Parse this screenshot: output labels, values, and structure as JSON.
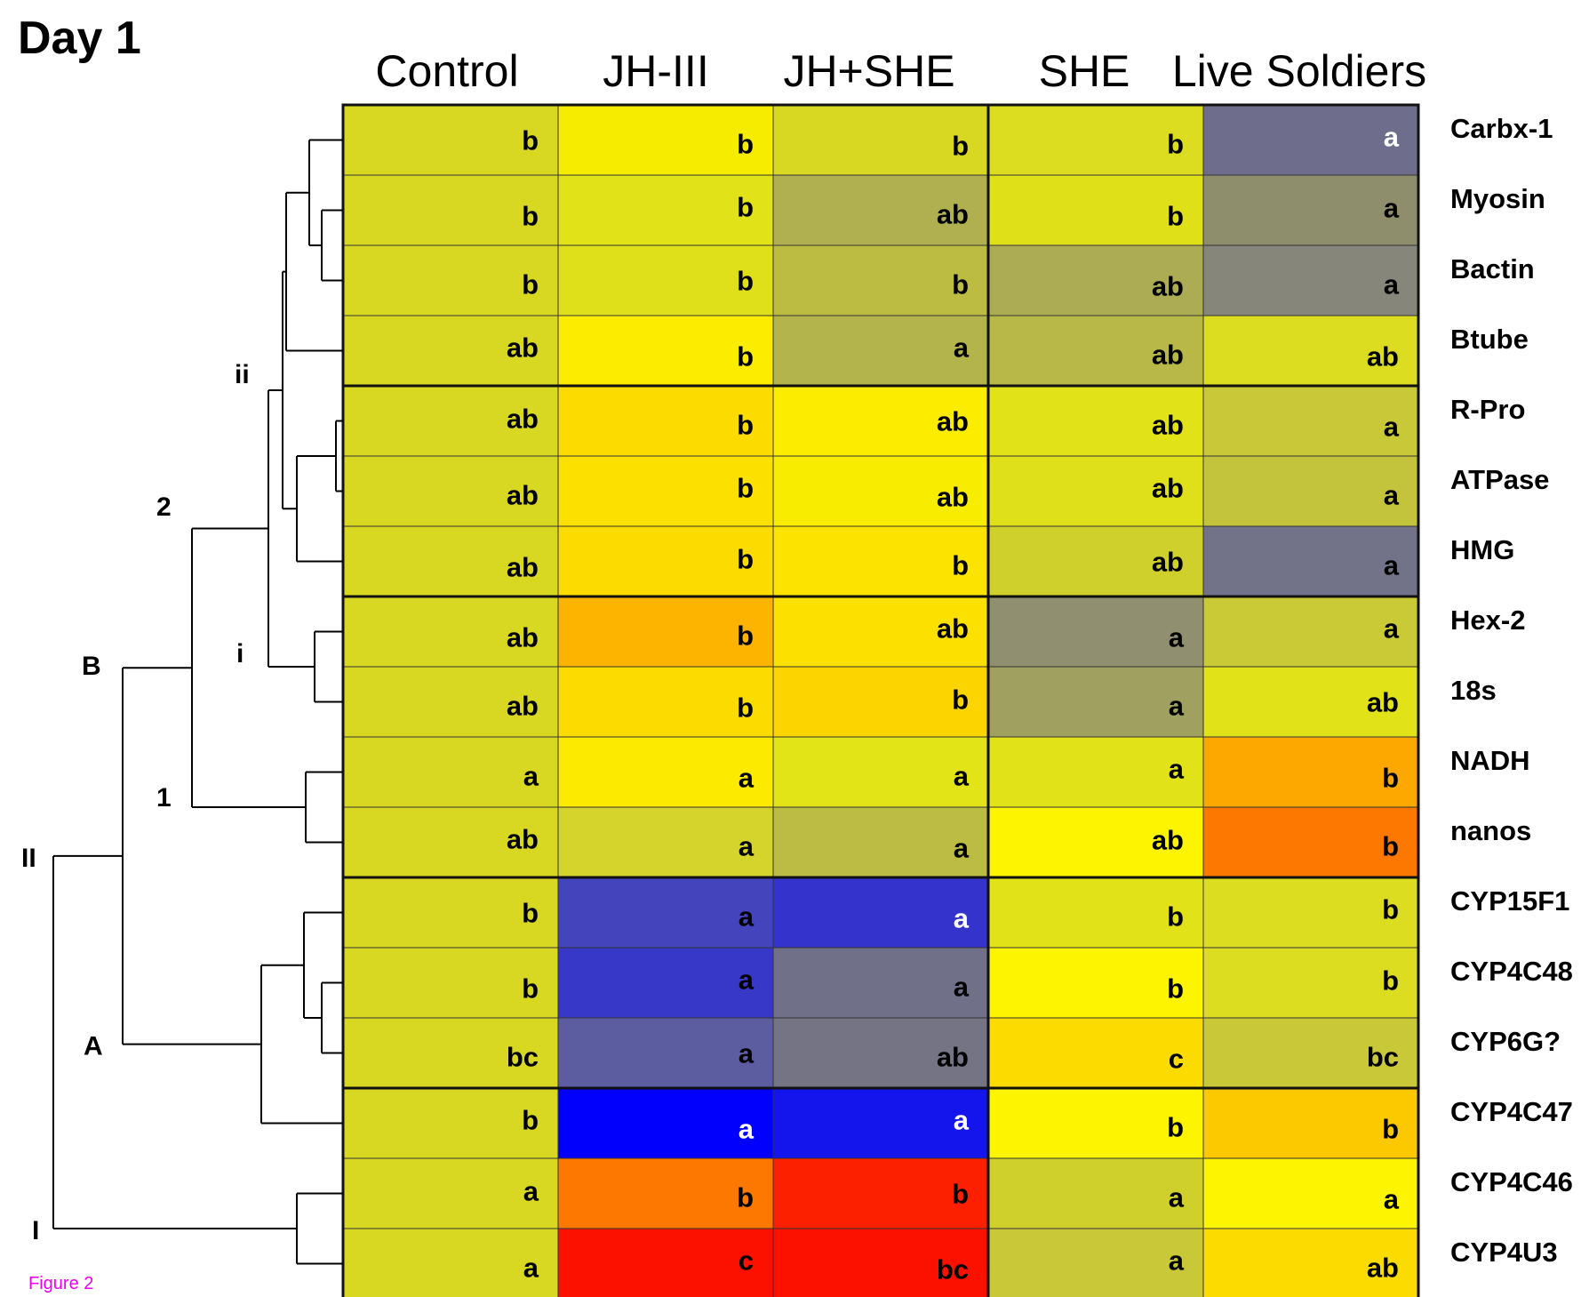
{
  "figure": {
    "title": "Day 1",
    "caption": "Figure 2"
  },
  "chart_data": {
    "type": "heatmap",
    "columns": [
      "Control",
      "JH-III",
      "JH+SHE",
      "SHE",
      "Live Soldiers"
    ],
    "rows": [
      "Carbx-1",
      "Myosin",
      "Bactin",
      "Btube",
      "R-Pro",
      "ATPase",
      "HMG",
      "Hex-2",
      "18s",
      "NADH",
      "nanos",
      "CYP15F1",
      "CYP4C48",
      "CYP6G?",
      "CYP4C47",
      "CYP4C46",
      "CYP4U3"
    ],
    "cells": [
      [
        {
          "letter": "b",
          "color": "#d8d823"
        },
        {
          "letter": "b",
          "color": "#f6ec00"
        },
        {
          "letter": "b",
          "color": "#d8d823"
        },
        {
          "letter": "b",
          "color": "#dcdc20"
        },
        {
          "letter": "a",
          "color": "#6e6e8c",
          "text_color": "#ffffff"
        }
      ],
      [
        {
          "letter": "b",
          "color": "#d8d823"
        },
        {
          "letter": "b",
          "color": "#e2e218"
        },
        {
          "letter": "ab",
          "color": "#b0b050"
        },
        {
          "letter": "b",
          "color": "#e0e019"
        },
        {
          "letter": "a",
          "color": "#8e8e6c"
        }
      ],
      [
        {
          "letter": "b",
          "color": "#d8d823"
        },
        {
          "letter": "b",
          "color": "#e0e01a"
        },
        {
          "letter": "b",
          "color": "#bcbc42"
        },
        {
          "letter": "ab",
          "color": "#acac55"
        },
        {
          "letter": "a",
          "color": "#86867a"
        }
      ],
      [
        {
          "letter": "ab",
          "color": "#d8d823"
        },
        {
          "letter": "b",
          "color": "#fcec00"
        },
        {
          "letter": "a",
          "color": "#b4b44c"
        },
        {
          "letter": "ab",
          "color": "#b8b848"
        },
        {
          "letter": "ab",
          "color": "#dcdc20"
        }
      ],
      [
        {
          "letter": "ab",
          "color": "#d8d823"
        },
        {
          "letter": "b",
          "color": "#fcdc00"
        },
        {
          "letter": "ab",
          "color": "#fcec00"
        },
        {
          "letter": "ab",
          "color": "#e2e218"
        },
        {
          "letter": "a",
          "color": "#c8c838"
        }
      ],
      [
        {
          "letter": "ab",
          "color": "#d8d823"
        },
        {
          "letter": "b",
          "color": "#fce000"
        },
        {
          "letter": "ab",
          "color": "#f8ec00"
        },
        {
          "letter": "ab",
          "color": "#e0e01a"
        },
        {
          "letter": "a",
          "color": "#c4c43c"
        }
      ],
      [
        {
          "letter": "ab",
          "color": "#d8d823"
        },
        {
          "letter": "b",
          "color": "#fcdc00"
        },
        {
          "letter": "b",
          "color": "#fce400"
        },
        {
          "letter": "ab",
          "color": "#d0d02c"
        },
        {
          "letter": "a",
          "color": "#727288"
        }
      ],
      [
        {
          "letter": "ab",
          "color": "#d8d823"
        },
        {
          "letter": "b",
          "color": "#fcb400"
        },
        {
          "letter": "ab",
          "color": "#fce000"
        },
        {
          "letter": "a",
          "color": "#909070"
        },
        {
          "letter": "a",
          "color": "#caca36"
        }
      ],
      [
        {
          "letter": "ab",
          "color": "#d8d823"
        },
        {
          "letter": "b",
          "color": "#fcdc00"
        },
        {
          "letter": "b",
          "color": "#fcd400"
        },
        {
          "letter": "a",
          "color": "#a0a060"
        },
        {
          "letter": "ab",
          "color": "#e2e218"
        }
      ],
      [
        {
          "letter": "a",
          "color": "#d8d823"
        },
        {
          "letter": "a",
          "color": "#fcea00"
        },
        {
          "letter": "a",
          "color": "#e2e418"
        },
        {
          "letter": "a",
          "color": "#e2e218"
        },
        {
          "letter": "b",
          "color": "#fca800"
        }
      ],
      [
        {
          "letter": "ab",
          "color": "#d8d823"
        },
        {
          "letter": "a",
          "color": "#d4d42c"
        },
        {
          "letter": "a",
          "color": "#bcbc44"
        },
        {
          "letter": "ab",
          "color": "#fcf400"
        },
        {
          "letter": "b",
          "color": "#fc7800"
        }
      ],
      [
        {
          "letter": "b",
          "color": "#d8d823"
        },
        {
          "letter": "a",
          "color": "#4444bc"
        },
        {
          "letter": "a",
          "color": "#3434cc",
          "text_color": "#ffffff"
        },
        {
          "letter": "b",
          "color": "#e2e218"
        },
        {
          "letter": "b",
          "color": "#dcdc20"
        }
      ],
      [
        {
          "letter": "b",
          "color": "#d8d823"
        },
        {
          "letter": "a",
          "color": "#3838c8"
        },
        {
          "letter": "a",
          "color": "#707088"
        },
        {
          "letter": "b",
          "color": "#fcf400"
        },
        {
          "letter": "b",
          "color": "#dcdc20"
        }
      ],
      [
        {
          "letter": "bc",
          "color": "#d8d823"
        },
        {
          "letter": "a",
          "color": "#5c5ca0"
        },
        {
          "letter": "ab",
          "color": "#747484"
        },
        {
          "letter": "c",
          "color": "#fcdc00"
        },
        {
          "letter": "bc",
          "color": "#c8c838"
        }
      ],
      [
        {
          "letter": "b",
          "color": "#d8d823"
        },
        {
          "letter": "a",
          "color": "#0000fc",
          "text_color": "#ffffff"
        },
        {
          "letter": "a",
          "color": "#1414ec",
          "text_color": "#ffffff"
        },
        {
          "letter": "b",
          "color": "#fcf400"
        },
        {
          "letter": "b",
          "color": "#fcc800"
        }
      ],
      [
        {
          "letter": "a",
          "color": "#d8d823"
        },
        {
          "letter": "b",
          "color": "#fc7800"
        },
        {
          "letter": "b",
          "color": "#fc2000"
        },
        {
          "letter": "a",
          "color": "#d0d02c"
        },
        {
          "letter": "a",
          "color": "#fcf400"
        }
      ],
      [
        {
          "letter": "a",
          "color": "#d8d823"
        },
        {
          "letter": "c",
          "color": "#fc1000"
        },
        {
          "letter": "bc",
          "color": "#fc1000"
        },
        {
          "letter": "a",
          "color": "#c8c838"
        },
        {
          "letter": "ab",
          "color": "#fcdc00"
        }
      ]
    ],
    "dendrogram_labels": [
      "I",
      "II",
      "A",
      "B",
      "1",
      "2",
      "i",
      "ii"
    ]
  }
}
